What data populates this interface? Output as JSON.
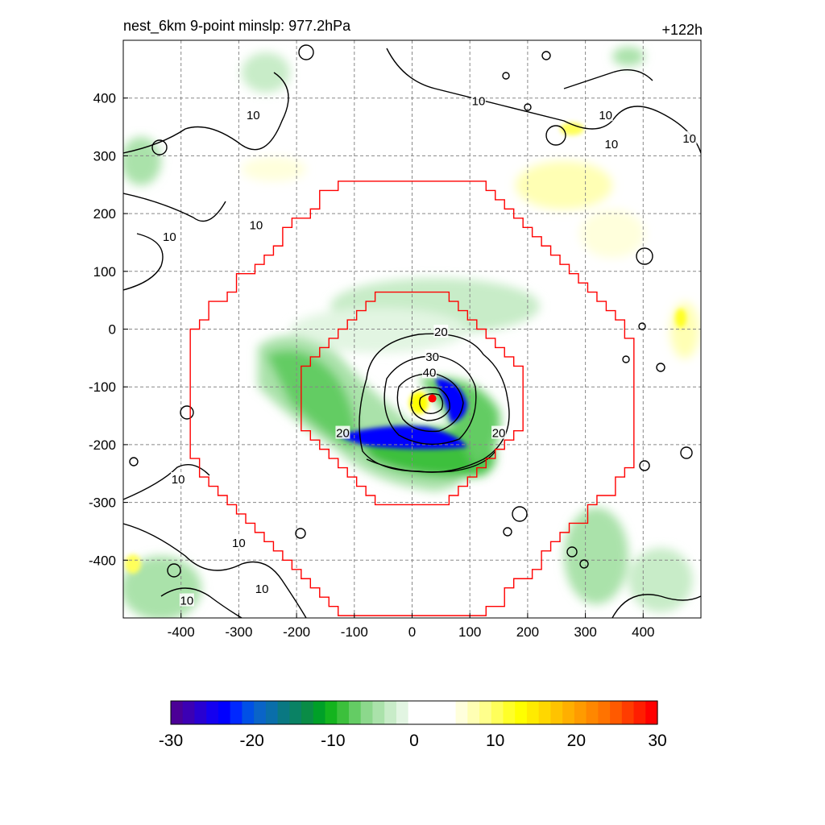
{
  "title_left": "nest_6km  9-point minslp: 977.2hPa",
  "title_right": "+122h",
  "chart_data": {
    "type": "heatmap",
    "xlim": [
      -500,
      500
    ],
    "ylim": [
      -500,
      500
    ],
    "x_ticks": [
      -400,
      -300,
      -200,
      -100,
      0,
      100,
      200,
      300,
      400
    ],
    "y_ticks": [
      -400,
      -300,
      -200,
      -100,
      0,
      100,
      200,
      300,
      400
    ],
    "x_tick_labels": [
      "-400",
      "-300",
      "-200",
      "-100",
      "0",
      "100",
      "200",
      "300",
      "400"
    ],
    "y_tick_labels": [
      "-400",
      "-300",
      "-200",
      "-100",
      "0",
      "100",
      "200",
      "300",
      "400"
    ],
    "grid": true,
    "center_marker": {
      "x": 35,
      "y": -120,
      "color": "#ff0000"
    },
    "contour_levels": [
      10,
      20,
      30,
      40
    ],
    "contour_labels": [
      {
        "text": "20",
        "x": 50,
        "y": -5
      },
      {
        "text": "30",
        "x": 35,
        "y": -48
      },
      {
        "text": "40",
        "x": 30,
        "y": -75
      },
      {
        "text": "20",
        "x": -120,
        "y": -180
      },
      {
        "text": "20",
        "x": 150,
        "y": -180
      },
      {
        "text": "10",
        "x": -270,
        "y": 180
      },
      {
        "text": "10",
        "x": -420,
        "y": 160
      },
      {
        "text": "10",
        "x": 115,
        "y": 395
      },
      {
        "text": "10",
        "x": 335,
        "y": 370
      },
      {
        "text": "10",
        "x": 345,
        "y": 320
      },
      {
        "text": "10",
        "x": 480,
        "y": 330
      },
      {
        "text": "10",
        "x": -275,
        "y": 370
      },
      {
        "text": "10",
        "x": -405,
        "y": -260
      },
      {
        "text": "10",
        "x": -300,
        "y": -370
      },
      {
        "text": "10",
        "x": -390,
        "y": -470
      },
      {
        "text": "10",
        "x": -260,
        "y": -450
      }
    ],
    "nest_boxes": [
      {
        "name": "outer",
        "radius": 380,
        "color": "#ff0000"
      },
      {
        "name": "inner",
        "radius": 185,
        "color": "#ff0000"
      }
    ],
    "colorbar": {
      "min": -30,
      "max": 30,
      "tick_labels": [
        "-30",
        "-20",
        "-10",
        "0",
        "10",
        "20",
        "30"
      ],
      "tick_values": [
        -30,
        -20,
        -10,
        0,
        10,
        20,
        30
      ],
      "colors": [
        "#4b0096",
        "#3c00b4",
        "#2800d2",
        "#1400f0",
        "#0000ff",
        "#0028ff",
        "#0050e6",
        "#0a64c8",
        "#0a6eaa",
        "#0a7882",
        "#0a8264",
        "#0a8c46",
        "#00a028",
        "#14b41e",
        "#3cc03c",
        "#64cc64",
        "#8cd88c",
        "#aae2aa",
        "#c8ecc8",
        "#e2f5e2",
        "#ffffff",
        "#ffffff",
        "#ffffff",
        "#ffffff",
        "#ffffdc",
        "#ffffb4",
        "#ffff8c",
        "#ffff5a",
        "#ffff28",
        "#ffff00",
        "#ffeb00",
        "#ffd700",
        "#ffc300",
        "#ffaf00",
        "#ff9b00",
        "#ff8700",
        "#ff7300",
        "#ff5a00",
        "#ff3c00",
        "#ff1e00",
        "#ff0000"
      ]
    }
  }
}
